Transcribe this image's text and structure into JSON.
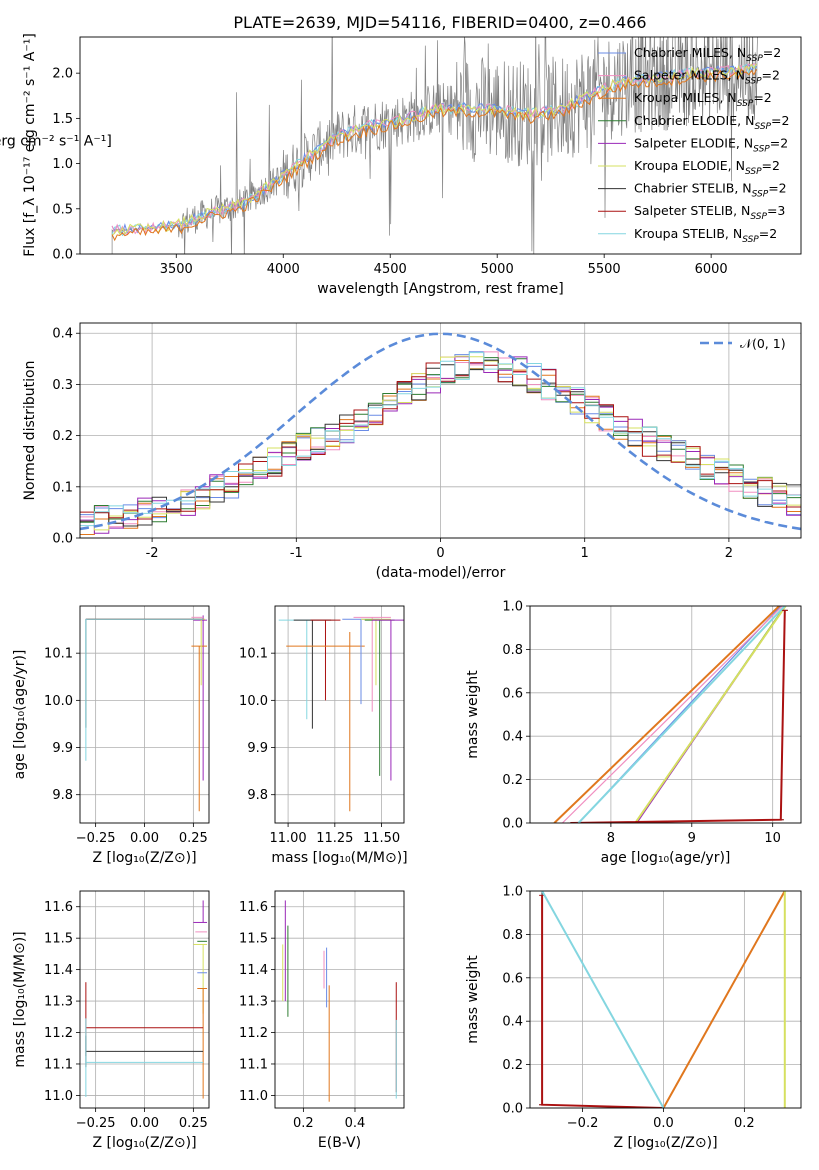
{
  "title": "PLATE=2639, MJD=54116, FIBERID=0400, z=0.466",
  "colors": {
    "Chabrier MILES": "#6a8be6",
    "Salpeter MILES": "#f08ec0",
    "Kroupa MILES": "#e0771e",
    "Chabrier ELODIE": "#2e7d32",
    "Salpeter ELODIE": "#9a28b8",
    "Kroupa ELODIE": "#d6e060",
    "Chabrier STELIB": "#333333",
    "Salpeter STELIB": "#aa1111",
    "Kroupa STELIB": "#84d6e0",
    "data": "#808080",
    "normal": "#5b8bd9",
    "grid": "#b0b0b0"
  },
  "chart_data": [
    {
      "id": "spectrum",
      "type": "line",
      "xlabel": "wavelength [Angstrom, rest frame]",
      "ylabel": "Flux [f_λ 10⁻¹⁷ erg cm⁻² s⁻¹ A⁻¹]",
      "xlim": [
        3050,
        6420
      ],
      "ylim": [
        0,
        2.4
      ],
      "xticks": [
        3500,
        4000,
        4500,
        5000,
        5500,
        6000
      ],
      "yticks": [
        0.0,
        0.5,
        1.0,
        1.5,
        2.0
      ],
      "legend": [
        {
          "name": "Chabrier MILES",
          "base": "Chabrier MILES, N",
          "sub": "SSP",
          "suffix": "=2"
        },
        {
          "name": "Salpeter MILES",
          "base": "Salpeter MILES, N",
          "sub": "SSP",
          "suffix": "=2"
        },
        {
          "name": "Kroupa MILES",
          "base": "Kroupa MILES, N",
          "sub": "SSP",
          "suffix": "=2"
        },
        {
          "name": "Chabrier ELODIE",
          "base": "Chabrier ELODIE, N",
          "sub": "SSP",
          "suffix": "=2"
        },
        {
          "name": "Salpeter ELODIE",
          "base": "Salpeter ELODIE, N",
          "sub": "SSP",
          "suffix": "=2"
        },
        {
          "name": "Kroupa ELODIE",
          "base": "Kroupa ELODIE, N",
          "sub": "SSP",
          "suffix": "=2"
        },
        {
          "name": "Chabrier STELIB",
          "base": "Chabrier STELIB, N",
          "sub": "SSP",
          "suffix": "=2"
        },
        {
          "name": "Salpeter STELIB",
          "base": "Salpeter STELIB, N",
          "sub": "SSP",
          "suffix": "=3"
        },
        {
          "name": "Kroupa STELIB",
          "base": "Kroupa STELIB, N",
          "sub": "SSP",
          "suffix": "=2"
        }
      ],
      "legend_loc": "upper right",
      "continuum": {
        "wave": [
          3200,
          3350,
          3500,
          3650,
          3800,
          3950,
          4100,
          4250,
          4400,
          4550,
          4700,
          4850,
          5000,
          5150,
          5300,
          5450,
          5600,
          5750,
          5900,
          6050,
          6200
        ],
        "flux": [
          0.26,
          0.28,
          0.32,
          0.45,
          0.55,
          0.78,
          1.05,
          1.3,
          1.42,
          1.48,
          1.6,
          1.62,
          1.6,
          1.55,
          1.6,
          1.78,
          1.92,
          1.95,
          2.0,
          2.02,
          2.05
        ]
      }
    },
    {
      "id": "residuals",
      "type": "histogram",
      "xlabel": "(data-model)/error",
      "ylabel": "Normed distribution",
      "xlim": [
        -2.5,
        2.5
      ],
      "ylim": [
        0,
        0.42
      ],
      "xticks": [
        -2,
        -1,
        0,
        1,
        2
      ],
      "yticks": [
        0.0,
        0.1,
        0.2,
        0.3,
        0.4
      ],
      "normal_label": "𝒩(0, 1)",
      "legend_loc": "upper right",
      "bin_width": 0.1,
      "envelope": [
        0.03,
        0.04,
        0.05,
        0.07,
        0.1,
        0.13,
        0.17,
        0.2,
        0.24,
        0.28,
        0.32,
        0.34,
        0.33,
        0.3,
        0.26,
        0.22,
        0.18,
        0.15,
        0.12,
        0.09,
        0.07
      ]
    },
    {
      "id": "age_vs_Z",
      "type": "scatter",
      "xlabel": "Z [log₁₀(Z/Z⊙)]",
      "ylabel": "age  [log₁₀(age/yr)]",
      "xlim": [
        -0.33,
        0.33
      ],
      "ylim": [
        9.74,
        10.2
      ],
      "xticks": [
        -0.25,
        0.0,
        0.25
      ],
      "xticklabels": [
        "−0.25",
        "0.00",
        "0.25"
      ],
      "yticks": [
        9.8,
        9.9,
        10.0,
        10.1
      ]
    },
    {
      "id": "age_vs_mass",
      "type": "scatter",
      "xlabel": "mass [log₁₀(M/M⊙)]",
      "ylabel": "",
      "xlim": [
        10.93,
        11.62
      ],
      "ylim": [
        9.74,
        10.2
      ],
      "xticks": [
        11.0,
        11.25,
        11.5
      ],
      "xticklabels": [
        "11.00",
        "11.25",
        "11.50"
      ],
      "yticks": [
        9.8,
        9.9,
        10.0,
        10.1
      ]
    },
    {
      "id": "cum_mass_vs_age",
      "type": "line",
      "xlabel": "age  [log₁₀(age/yr)]",
      "ylabel": "mass weight",
      "xlim": [
        7.0,
        10.35
      ],
      "ylim": [
        0,
        1
      ],
      "xticks": [
        8,
        9,
        10
      ],
      "yticks": [
        0.0,
        0.2,
        0.4,
        0.6,
        0.8,
        1.0
      ],
      "series": [
        {
          "name": "Chabrier MILES",
          "x": [
            7.6,
            10.1
          ],
          "y": [
            0,
            1.0
          ]
        },
        {
          "name": "Salpeter MILES",
          "x": [
            7.4,
            10.12
          ],
          "y": [
            0,
            1.0
          ]
        },
        {
          "name": "Kroupa MILES",
          "x": [
            7.3,
            10.08
          ],
          "y": [
            0,
            1.0
          ]
        },
        {
          "name": "Chabrier ELODIE",
          "x": [
            8.3,
            10.15
          ],
          "y": [
            0,
            1.0
          ]
        },
        {
          "name": "Salpeter ELODIE",
          "x": [
            8.32,
            10.16
          ],
          "y": [
            0,
            1.0
          ]
        },
        {
          "name": "Kroupa ELODIE",
          "x": [
            8.3,
            10.16
          ],
          "y": [
            0,
            1.0
          ]
        },
        {
          "name": "Chabrier STELIB",
          "x": [
            7.5,
            10.1,
            10.15
          ],
          "y": [
            0,
            0.015,
            0.98
          ]
        },
        {
          "name": "Salpeter STELIB",
          "x": [
            7.5,
            10.1,
            10.15
          ],
          "y": [
            0,
            0.015,
            0.98
          ]
        },
        {
          "name": "Kroupa STELIB",
          "x": [
            7.6,
            10.15
          ],
          "y": [
            0,
            1.0
          ]
        }
      ]
    },
    {
      "id": "mass_vs_Z",
      "type": "scatter",
      "xlabel": "Z [log₁₀(Z/Z⊙)]",
      "ylabel": "mass [log₁₀(M/M⊙)]",
      "xlim": [
        -0.33,
        0.33
      ],
      "ylim": [
        10.96,
        11.65
      ],
      "xticks": [
        -0.25,
        0.0,
        0.25
      ],
      "xticklabels": [
        "−0.25",
        "0.00",
        "0.25"
      ],
      "yticks": [
        11.0,
        11.1,
        11.2,
        11.3,
        11.4,
        11.5,
        11.6
      ]
    },
    {
      "id": "mass_vs_ebv",
      "type": "scatter",
      "xlabel": "E(B-V)",
      "ylabel": "",
      "xlim": [
        0.09,
        0.59
      ],
      "ylim": [
        10.96,
        11.65
      ],
      "xticks": [
        0.2,
        0.4
      ],
      "xticklabels": [
        "0.2",
        "0.4"
      ],
      "yticks": [
        11.0,
        11.1,
        11.2,
        11.3,
        11.4,
        11.5,
        11.6
      ]
    },
    {
      "id": "cum_mass_vs_Z",
      "type": "line",
      "xlabel": "Z [log₁₀(Z/Z⊙)]",
      "ylabel": "mass weight",
      "xlim": [
        -0.33,
        0.34
      ],
      "ylim": [
        0,
        1
      ],
      "xticks": [
        -0.2,
        0.0,
        0.2
      ],
      "xticklabels": [
        "−0.2",
        "0.0",
        "0.2"
      ],
      "yticks": [
        0.0,
        0.2,
        0.4,
        0.6,
        0.8,
        1.0
      ],
      "series": [
        {
          "name": "Chabrier MILES",
          "x": [
            0.0,
            0.3
          ],
          "y": [
            0,
            1.0
          ]
        },
        {
          "name": "Salpeter MILES",
          "x": [
            0.0,
            0.3
          ],
          "y": [
            0,
            1.0
          ]
        },
        {
          "name": "Kroupa MILES",
          "x": [
            0.0,
            0.3
          ],
          "y": [
            0,
            1.0
          ]
        },
        {
          "name": "Chabrier ELODIE",
          "x": [
            0.3,
            0.3
          ],
          "y": [
            0,
            1.0
          ]
        },
        {
          "name": "Salpeter ELODIE",
          "x": [
            0.3,
            0.3
          ],
          "y": [
            0,
            1.0
          ]
        },
        {
          "name": "Kroupa ELODIE",
          "x": [
            0.3,
            0.3
          ],
          "y": [
            0,
            1.0
          ]
        },
        {
          "name": "Chabrier STELIB",
          "x": [
            -0.3,
            -0.3,
            0.0
          ],
          "y": [
            1.0,
            0.015,
            0.0
          ]
        },
        {
          "name": "Salpeter STELIB",
          "x": [
            -0.3,
            -0.3,
            0.0
          ],
          "y": [
            0.98,
            0.015,
            0.0
          ]
        },
        {
          "name": "Kroupa STELIB",
          "x": [
            -0.3,
            0.0
          ],
          "y": [
            1.0,
            0.0
          ]
        }
      ]
    }
  ]
}
